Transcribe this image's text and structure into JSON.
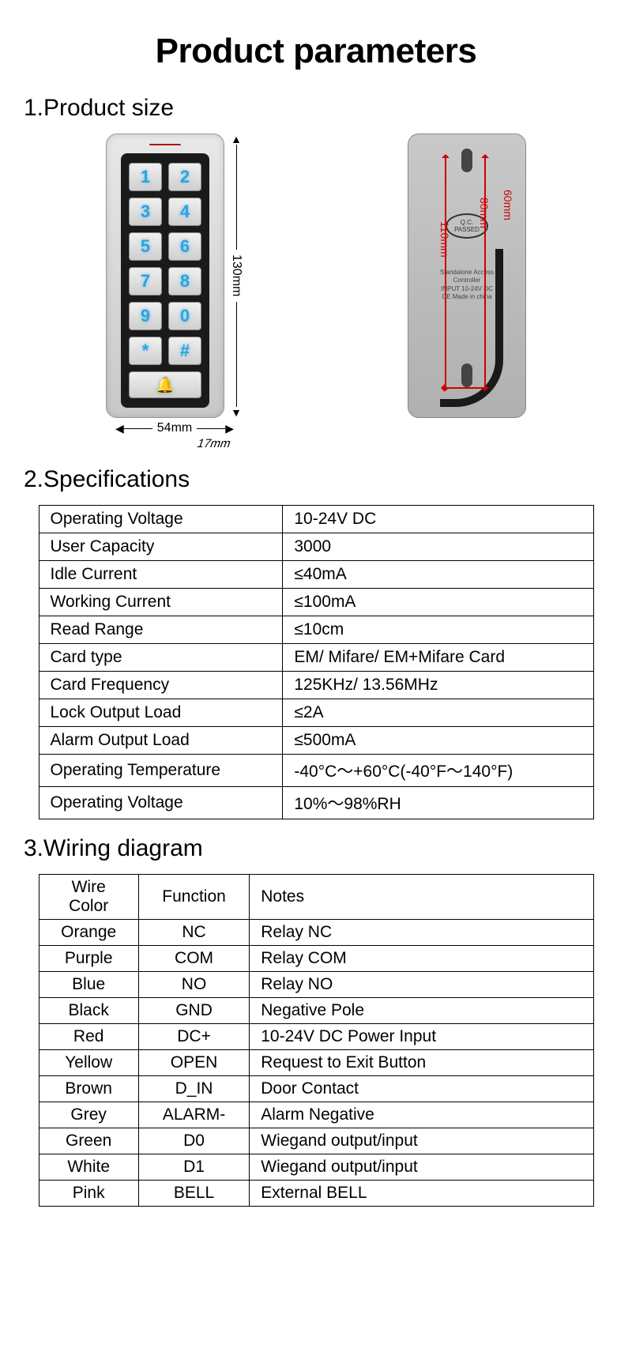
{
  "title": "Product parameters",
  "sections": {
    "size": "1.Product size",
    "specs": "2.Specifications",
    "wiring": "3.Wiring diagram"
  },
  "dimensions": {
    "height": "130mm",
    "width": "54mm",
    "depth": "17mm",
    "back_inner1": "110mm",
    "back_inner2": "80mm",
    "back_inner3": "60mm"
  },
  "keypad": {
    "keys": [
      "1",
      "2",
      "3",
      "4",
      "5",
      "6",
      "7",
      "8",
      "9",
      "0",
      "*",
      "#"
    ],
    "bell_icon": "bell-icon",
    "key_color": "#2aa5e0",
    "frame_color": "#1a1a1a",
    "body_gradient_top": "#e8e8e8",
    "body_gradient_bottom": "#c8c8c8",
    "led_color": "#b01010"
  },
  "back_view": {
    "qc_top": "Q.C.",
    "qc_bottom": "PASSED",
    "label_line1": "Standalone Access",
    "label_line2": "Controller",
    "label_line3": "INPUT 10-24V DC",
    "label_line4": "CE   Made in china",
    "dimension_color": "#d00000"
  },
  "specifications": {
    "rows": [
      {
        "label": "Operating Voltage",
        "value": "10-24V DC"
      },
      {
        "label": "User Capacity",
        "value": "3000"
      },
      {
        "label": "Idle Current",
        "value": "≤40mA"
      },
      {
        "label": "Working Current",
        "value": "≤100mA"
      },
      {
        "label": "Read Range",
        "value": "≤10cm"
      },
      {
        "label": "Card type",
        "value": "EM/ Mifare/ EM+Mifare Card"
      },
      {
        "label": "Card Frequency",
        "value": "125KHz/ 13.56MHz"
      },
      {
        "label": "Lock Output Load",
        "value": "≤2A"
      },
      {
        "label": "Alarm Output Load",
        "value": "≤500mA"
      },
      {
        "label": "Operating Temperature",
        "value": "-40°C～+60°C(-40°F～140°F)"
      },
      {
        "label": "Operating Voltage",
        "value": "10%～98%RH"
      }
    ]
  },
  "wiring": {
    "headers": [
      "Wire Color",
      "Function",
      "Notes"
    ],
    "rows": [
      {
        "color": "Orange",
        "func": "NC",
        "note": "Relay NC"
      },
      {
        "color": "Purple",
        "func": "COM",
        "note": "Relay COM"
      },
      {
        "color": "Blue",
        "func": "NO",
        "note": "Relay NO"
      },
      {
        "color": "Black",
        "func": "GND",
        "note": "Negative Pole"
      },
      {
        "color": "Red",
        "func": "DC+",
        "note": "10-24V DC Power Input"
      },
      {
        "color": "Yellow",
        "func": "OPEN",
        "note": "Request to Exit Button"
      },
      {
        "color": "Brown",
        "func": "D_IN",
        "note": "Door Contact"
      },
      {
        "color": "Grey",
        "func": "ALARM-",
        "note": "Alarm Negative"
      },
      {
        "color": "Green",
        "func": "D0",
        "note": "Wiegand output/input"
      },
      {
        "color": "White",
        "func": "D1",
        "note": "Wiegand output/input"
      },
      {
        "color": "Pink",
        "func": "BELL",
        "note": "External BELL"
      }
    ]
  },
  "colors": {
    "text": "#000000",
    "background": "#ffffff",
    "table_border": "#000000"
  }
}
